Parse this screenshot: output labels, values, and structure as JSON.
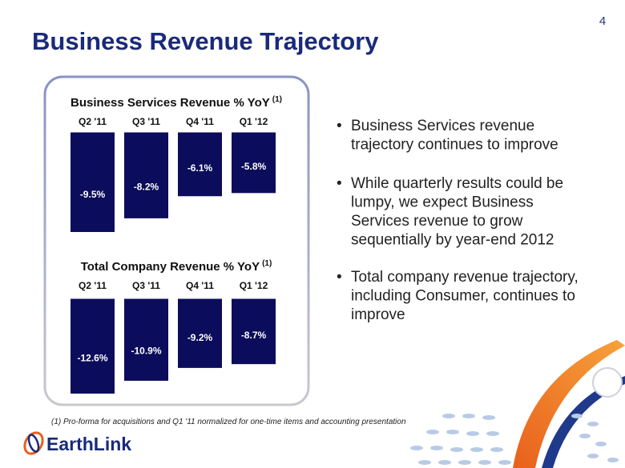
{
  "slide": {
    "page_number": "4",
    "title": "Business Revenue Trajectory",
    "bullets": [
      [
        "Business Services revenue",
        "trajectory continues to improve"
      ],
      [
        "While quarterly results could be",
        "lumpy, we expect Business",
        "Services revenue to grow",
        "sequentially by year-end 2012"
      ],
      [
        "Total company revenue trajectory,",
        "including Consumer, continues to",
        "improve"
      ]
    ],
    "footnote": "(1) Pro-forma for acquisitions and Q1 '11 normalized for one-time items and accounting presentation",
    "logo": "EarthLink"
  },
  "chart_data": [
    {
      "type": "bar",
      "title": "Business Services Revenue % YoY",
      "title_note": "(1)",
      "categories": [
        "Q2 '11",
        "Q3 '11",
        "Q4 '11",
        "Q1 '12"
      ],
      "values": [
        -9.5,
        -8.2,
        -6.1,
        -5.8
      ],
      "value_labels": [
        "-9.5%",
        "-8.2%",
        "-6.1%",
        "-5.8%"
      ],
      "color": "#0c0c5c"
    },
    {
      "type": "bar",
      "title": "Total Company Revenue % YoY",
      "title_note": "(1)",
      "categories": [
        "Q2 '11",
        "Q3 '11",
        "Q4 '11",
        "Q1 '12"
      ],
      "values": [
        -12.6,
        -10.9,
        -9.2,
        -8.7
      ],
      "value_labels": [
        "-12.6%",
        "-10.9%",
        "-9.2%",
        "-8.7%"
      ],
      "color": "#0c0c5c"
    }
  ]
}
